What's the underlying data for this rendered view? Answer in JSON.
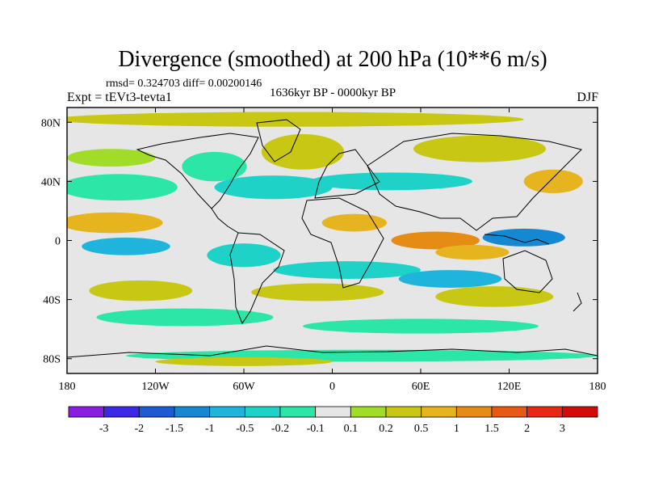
{
  "chart_data": {
    "type": "heatmap",
    "title": "Divergence (smoothed) at 200 hPa (10**6 m/s)",
    "stats_line": "rmsd= 0.324703 diff= 0.00200146",
    "experiment": "Expt = tEVt3-tevta1",
    "period": "1636kyr BP - 0000kyr BP",
    "season": "DJF",
    "x_ticks": [
      {
        "value": -180,
        "label": "180"
      },
      {
        "value": -120,
        "label": "120W"
      },
      {
        "value": -60,
        "label": "60W"
      },
      {
        "value": 0,
        "label": "0"
      },
      {
        "value": 60,
        "label": "60E"
      },
      {
        "value": 120,
        "label": "120E"
      },
      {
        "value": 180,
        "label": "180"
      }
    ],
    "y_ticks": [
      {
        "value": 80,
        "label": "80N"
      },
      {
        "value": 40,
        "label": "40N"
      },
      {
        "value": 0,
        "label": "0"
      },
      {
        "value": -40,
        "label": "40S"
      },
      {
        "value": -80,
        "label": "80S"
      }
    ],
    "xlim": [
      -180,
      180
    ],
    "ylim": [
      -90,
      90
    ],
    "colorbar": {
      "levels": [
        "-3",
        "-2",
        "-1.5",
        "-1",
        "-0.5",
        "-0.2",
        "-0.1",
        "0.1",
        "0.2",
        "0.5",
        "1",
        "1.5",
        "2",
        "3"
      ],
      "colors": [
        "#8a1ee0",
        "#3c28e6",
        "#1e5ad2",
        "#1488d2",
        "#1eb4dc",
        "#1ed2c8",
        "#2ce6a8",
        "#e6e6e6",
        "#a0dc28",
        "#c8c814",
        "#e6b41e",
        "#e68c14",
        "#e65a14",
        "#e62814",
        "#d20a0a"
      ]
    },
    "features": [
      {
        "name": "arctic-positive",
        "lon": -30,
        "lat": 82,
        "rx": 160,
        "ry": 5,
        "level": 9
      },
      {
        "name": "n-atlantic-positive",
        "lon": -20,
        "lat": 60,
        "rx": 28,
        "ry": 12,
        "level": 9
      },
      {
        "name": "n-america-negative",
        "lon": -80,
        "lat": 50,
        "rx": 22,
        "ry": 10,
        "level": 6
      },
      {
        "name": "n-pacific-positive",
        "lon": -150,
        "lat": 56,
        "rx": 30,
        "ry": 6,
        "level": 8
      },
      {
        "name": "n-pacific-negative",
        "lon": -145,
        "lat": 36,
        "rx": 40,
        "ry": 9,
        "level": 6
      },
      {
        "name": "n-atlantic-negative",
        "lon": -40,
        "lat": 36,
        "rx": 40,
        "ry": 8,
        "level": 5
      },
      {
        "name": "eurasia-negative",
        "lon": 40,
        "lat": 40,
        "rx": 55,
        "ry": 6,
        "level": 5
      },
      {
        "name": "siberia-positive",
        "lon": 100,
        "lat": 62,
        "rx": 45,
        "ry": 9,
        "level": 9
      },
      {
        "name": "east-asia-positive",
        "lon": 150,
        "lat": 40,
        "rx": 20,
        "ry": 8,
        "level": 10
      },
      {
        "name": "subtropic-pacific-positive",
        "lon": -150,
        "lat": 12,
        "rx": 35,
        "ry": 7,
        "level": 10
      },
      {
        "name": "tropic-pacific-negative",
        "lon": -140,
        "lat": -4,
        "rx": 30,
        "ry": 6,
        "level": 4
      },
      {
        "name": "africa-positive",
        "lon": 15,
        "lat": 12,
        "rx": 22,
        "ry": 6,
        "level": 10
      },
      {
        "name": "indian-positive",
        "lon": 70,
        "lat": 0,
        "rx": 30,
        "ry": 6,
        "level": 11
      },
      {
        "name": "indonesia-negative",
        "lon": 130,
        "lat": 2,
        "rx": 28,
        "ry": 6,
        "level": 3
      },
      {
        "name": "se-indian-positive",
        "lon": 95,
        "lat": -8,
        "rx": 25,
        "ry": 5,
        "level": 10
      },
      {
        "name": "south-america-negative",
        "lon": -60,
        "lat": -10,
        "rx": 25,
        "ry": 8,
        "level": 5
      },
      {
        "name": "s-atlantic-negative",
        "lon": 10,
        "lat": -20,
        "rx": 50,
        "ry": 6,
        "level": 5
      },
      {
        "name": "s-indian-negative",
        "lon": 80,
        "lat": -26,
        "rx": 35,
        "ry": 6,
        "level": 4
      },
      {
        "name": "s-pacific-positive",
        "lon": -130,
        "lat": -34,
        "rx": 35,
        "ry": 7,
        "level": 9
      },
      {
        "name": "s-atlantic-positive",
        "lon": -10,
        "lat": -35,
        "rx": 45,
        "ry": 6,
        "level": 9
      },
      {
        "name": "s-indian-positive",
        "lon": 110,
        "lat": -38,
        "rx": 40,
        "ry": 7,
        "level": 9
      },
      {
        "name": "s-pacific-negative",
        "lon": -100,
        "lat": -52,
        "rx": 60,
        "ry": 6,
        "level": 6
      },
      {
        "name": "southern-ocean-negative",
        "lon": 60,
        "lat": -58,
        "rx": 80,
        "ry": 5,
        "level": 6
      },
      {
        "name": "antarctic-negative",
        "lon": 20,
        "lat": -78,
        "rx": 160,
        "ry": 4,
        "level": 6
      },
      {
        "name": "antarctic-positive",
        "lon": -60,
        "lat": -82,
        "rx": 60,
        "ry": 3,
        "level": 9
      }
    ]
  }
}
